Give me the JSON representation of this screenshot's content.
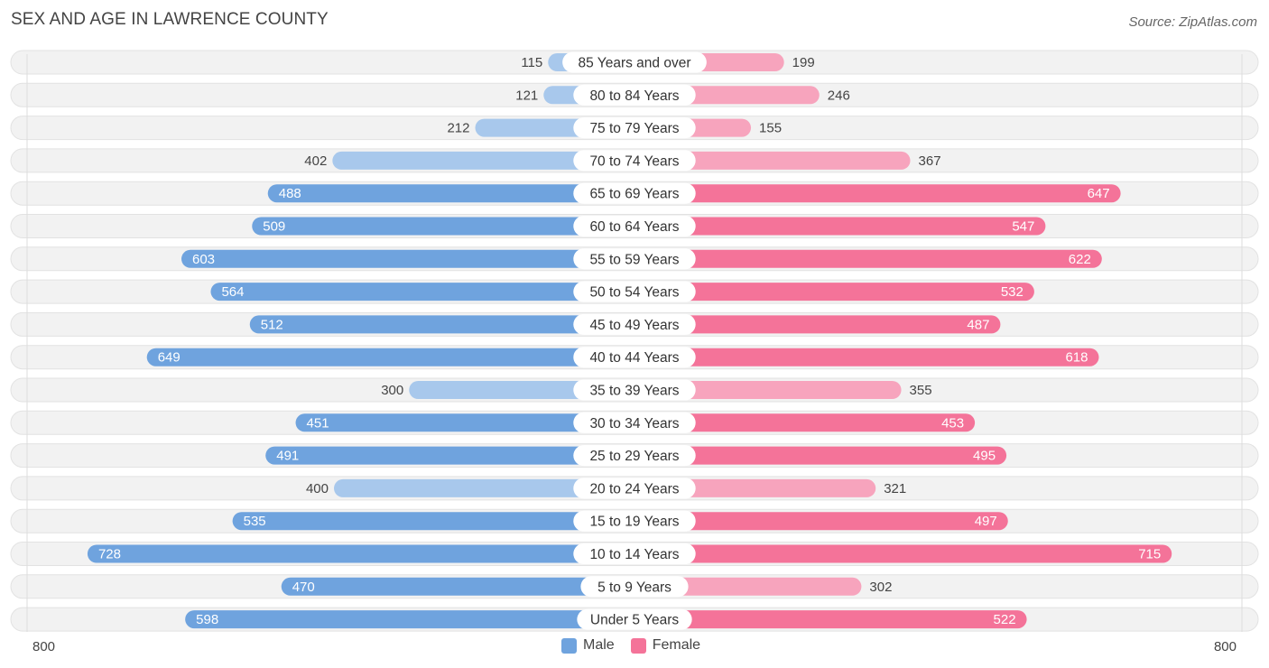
{
  "title": "SEX AND AGE IN LAWRENCE COUNTY",
  "source": "Source: ZipAtlas.com",
  "colors": {
    "male": "#6fa3de",
    "male_light": "#a8c8ec",
    "female": "#f47399",
    "female_light": "#f7a4bd",
    "track": "#f0f0f0"
  },
  "chart_data": {
    "type": "bar",
    "orientation": "horizontal-diverging",
    "categories": [
      "85 Years and over",
      "80 to 84 Years",
      "75 to 79 Years",
      "70 to 74 Years",
      "65 to 69 Years",
      "60 to 64 Years",
      "55 to 59 Years",
      "50 to 54 Years",
      "45 to 49 Years",
      "40 to 44 Years",
      "35 to 39 Years",
      "30 to 34 Years",
      "25 to 29 Years",
      "20 to 24 Years",
      "15 to 19 Years",
      "10 to 14 Years",
      "5 to 9 Years",
      "Under 5 Years"
    ],
    "series": [
      {
        "name": "Male",
        "values": [
          115,
          121,
          212,
          402,
          488,
          509,
          603,
          564,
          512,
          649,
          300,
          451,
          491,
          400,
          535,
          728,
          470,
          598
        ]
      },
      {
        "name": "Female",
        "values": [
          199,
          246,
          155,
          367,
          647,
          547,
          622,
          532,
          487,
          618,
          355,
          453,
          495,
          321,
          497,
          715,
          302,
          522
        ]
      }
    ],
    "axis_min_label": "800",
    "axis_max_label": "800",
    "xlim": [
      -800,
      800
    ],
    "legend": "bottom-center"
  }
}
